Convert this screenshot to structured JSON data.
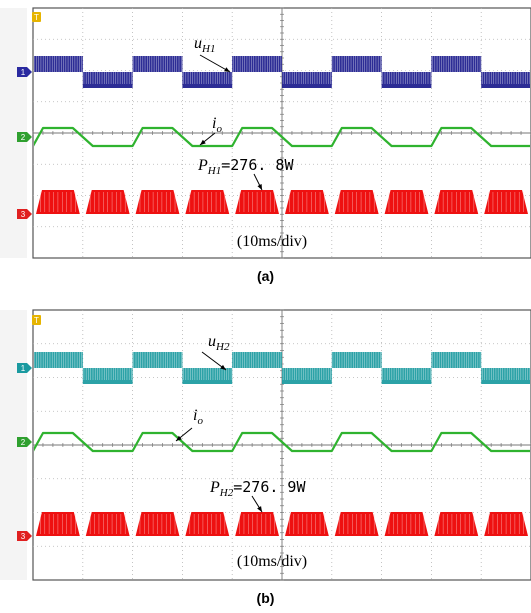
{
  "chart_data": [
    {
      "type": "line",
      "panel_caption": "(a)",
      "timebase": "(10ms/div)",
      "time_ms_range": [
        0,
        100
      ],
      "divisions": 10,
      "fundamental_period_ms": 20,
      "series": [
        {
          "name": "u_H1",
          "label_base": "u",
          "label_sub": "H1",
          "color": "#1a1a8c",
          "kind": "pwm_staircase",
          "start_high": true
        },
        {
          "name": "i_o",
          "label_base": "i",
          "label_sub": "o",
          "color": "#2fb32f",
          "kind": "trapezoid"
        },
        {
          "name": "P_H1",
          "label_base": "P",
          "label_sub": "H1",
          "value_text": "=276. 8W",
          "color": "#ee1111",
          "kind": "power_humps"
        }
      ],
      "channel_markers": [
        {
          "ch": "1",
          "color": "#2a2aa0"
        },
        {
          "ch": "2",
          "color": "#2fa02f"
        },
        {
          "ch": "3",
          "color": "#e02020"
        }
      ],
      "trigger_marker": {
        "text": "T",
        "color": "#e6b400"
      }
    },
    {
      "type": "line",
      "panel_caption": "(b)",
      "timebase": "(10ms/div)",
      "time_ms_range": [
        0,
        100
      ],
      "divisions": 10,
      "fundamental_period_ms": 20,
      "series": [
        {
          "name": "u_H2",
          "label_base": "u",
          "label_sub": "H2",
          "color": "#1a9aa0",
          "kind": "pwm_staircase",
          "start_high": true
        },
        {
          "name": "i_o",
          "label_base": "i",
          "label_sub": "o",
          "color": "#2fb32f",
          "kind": "trapezoid"
        },
        {
          "name": "P_H2",
          "label_base": "P",
          "label_sub": "H2",
          "value_text": "=276. 9W",
          "color": "#ee1111",
          "kind": "power_humps"
        }
      ],
      "channel_markers": [
        {
          "ch": "1",
          "color": "#1a9aa0"
        },
        {
          "ch": "2",
          "color": "#2fa02f"
        },
        {
          "ch": "3",
          "color": "#e02020"
        }
      ],
      "trigger_marker": {
        "text": "T",
        "color": "#e6b400"
      }
    }
  ]
}
